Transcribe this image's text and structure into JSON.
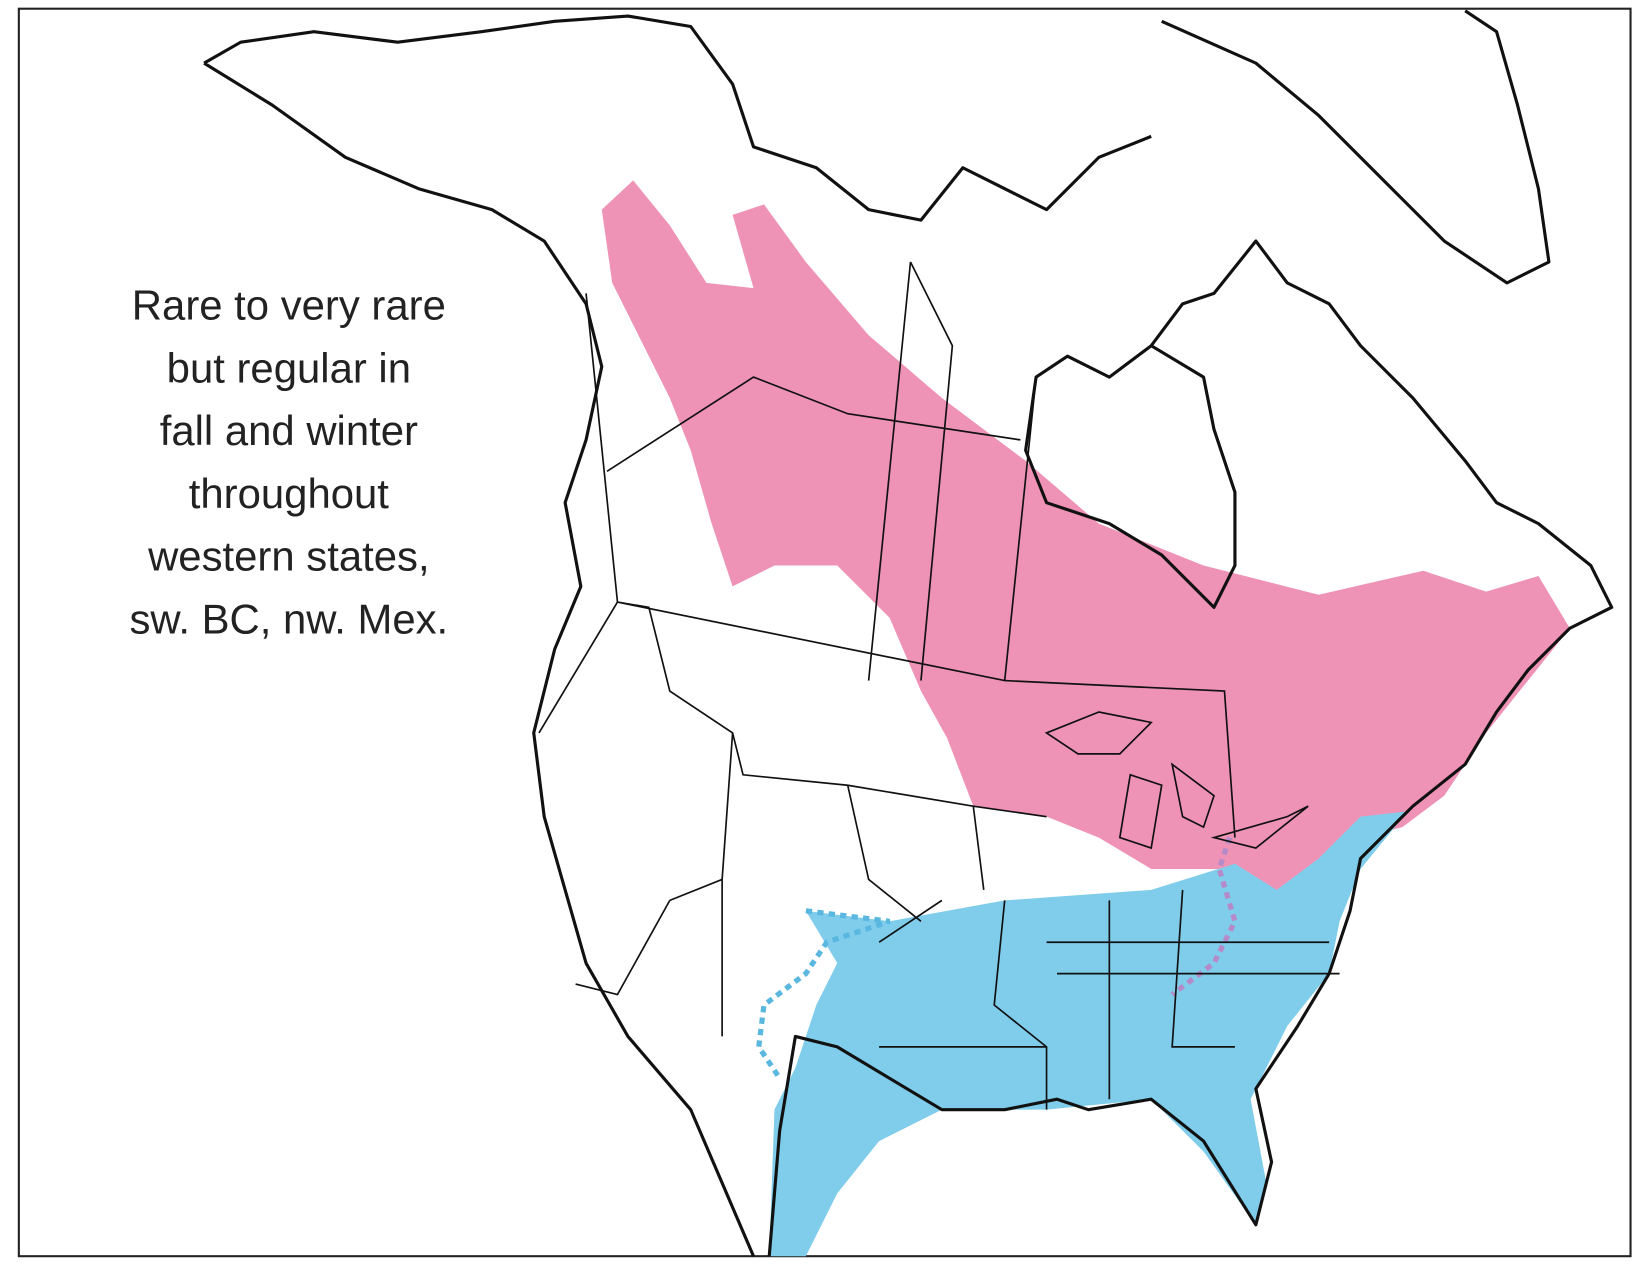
{
  "annotation": {
    "lines": [
      "Rare to very rare",
      "but regular in",
      "fall and winter",
      "throughout",
      "western states,",
      "sw. BC, nw. Mex."
    ]
  }
}
